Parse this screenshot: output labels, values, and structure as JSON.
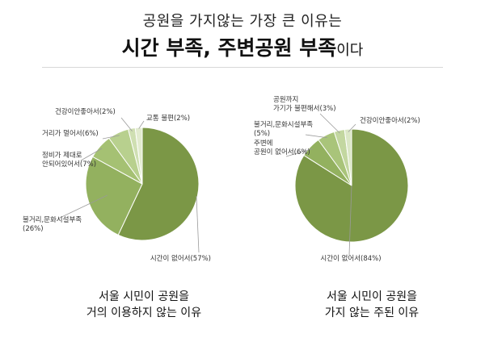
{
  "title": {
    "line1": "공원을 가지않는 가장 큰 이유는",
    "line2_bold": "시간 부족, 주변공원 부족",
    "line2_suffix": "이다"
  },
  "colors": {
    "dark": "#7b9746",
    "mid": "#93b15f",
    "light": "#b2cb86",
    "pale": "#cfdfb2",
    "paler": "#e2ebcf",
    "leader": "#9a9a9a",
    "rule": "#d8d8d8"
  },
  "chart_data": [
    {
      "type": "pie",
      "caption": [
        "서울 시민이 공원을",
        "거의 이용하지 않는 이유"
      ],
      "slices": [
        {
          "label": "시간이 없어서(57%)",
          "value": 57,
          "color": "#7b9746"
        },
        {
          "label": "불거리,문화시설부족\n(26%)",
          "value": 26,
          "color": "#93b15f"
        },
        {
          "label": "정비가 제대로\n안되어있어서(7%)",
          "value": 7,
          "color": "#a5c173"
        },
        {
          "label": "거리가 멀어서(6%)",
          "value": 6,
          "color": "#b8d08e"
        },
        {
          "label": "건강이안좋아서(2%)",
          "value": 2,
          "color": "#cfdfb2"
        },
        {
          "label": "교통 불편(2%)",
          "value": 2,
          "color": "#e2ebcf"
        }
      ]
    },
    {
      "type": "pie",
      "caption": [
        "서울 시민이 공원을",
        "가지 않는 주된 이유"
      ],
      "slices": [
        {
          "label": "시간이 없어서(84%)",
          "value": 84,
          "color": "#7b9746"
        },
        {
          "label": "주변에\n공원이 없어서(6%)",
          "value": 6,
          "color": "#93b15f"
        },
        {
          "label": "불거리,문화시설부족\n(5%)",
          "value": 5,
          "color": "#a9c47a"
        },
        {
          "label": "공원까지\n가기가 불편해서(3%)",
          "value": 3,
          "color": "#c3d7a0"
        },
        {
          "label": "건강이안좋아서(2%)",
          "value": 2,
          "color": "#dbe7c6"
        }
      ]
    }
  ]
}
